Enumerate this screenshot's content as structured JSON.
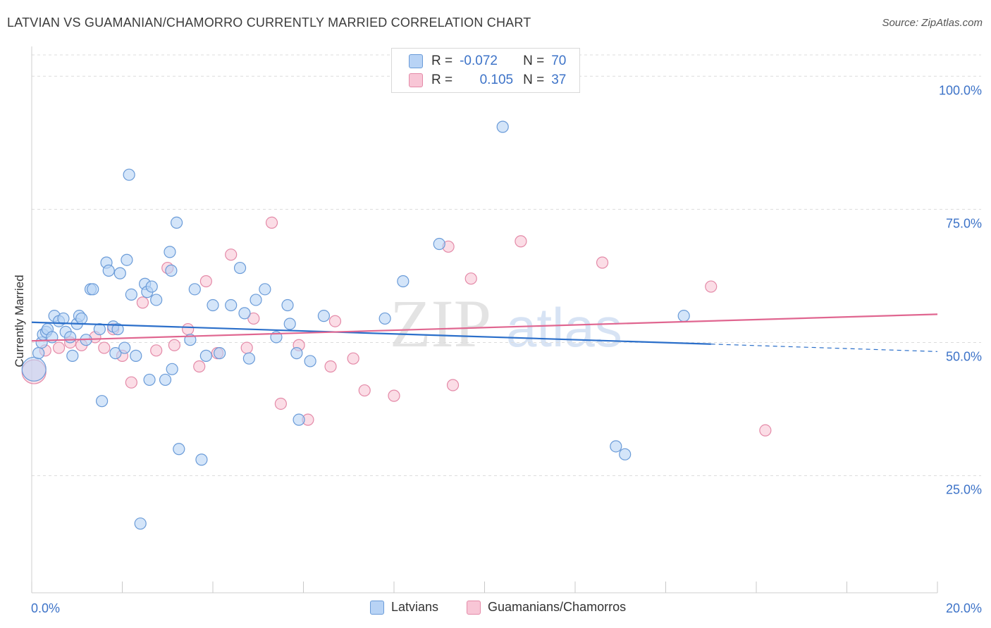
{
  "header": {
    "title": "LATVIAN VS GUAMANIAN/CHAMORRO CURRENTLY MARRIED CORRELATION CHART",
    "source": "Source: ZipAtlas.com"
  },
  "watermark": {
    "zip": "ZIP",
    "atlas": "atlas"
  },
  "stats": {
    "rows": [
      {
        "r_label": "R =",
        "r_value": "-0.072",
        "n_label": "N =",
        "n_value": "70"
      },
      {
        "r_label": "R =",
        "r_value": "0.105",
        "n_label": "N =",
        "n_value": "37"
      }
    ]
  },
  "legend": {
    "items": [
      "Latvians",
      "Guamanians/Chamorros"
    ]
  },
  "colors": {
    "blue_fill": "#b8d3f5",
    "blue_stroke": "#6a9bd8",
    "blue_line": "#2b6fca",
    "pink_fill": "#f8c6d6",
    "pink_stroke": "#e48aa8",
    "pink_line": "#e06690",
    "axis_label": "#3d73c8",
    "grid": "#dcdcdc"
  },
  "chart_data": {
    "type": "scatter",
    "title": "LATVIAN VS GUAMANIAN/CHAMORRO CURRENTLY MARRIED CORRELATION CHART",
    "xlabel": "",
    "ylabel": "Currently Married",
    "xlim": [
      0,
      20
    ],
    "ylim": [
      3,
      104
    ],
    "x_tick_labels": [
      "0.0%",
      "20.0%"
    ],
    "y_ticks": [
      25,
      50,
      75,
      100
    ],
    "y_tick_labels": [
      "25.0%",
      "50.0%",
      "75.0%",
      "100.0%"
    ],
    "grid": "horizontal dashed",
    "series": [
      {
        "name": "Latvians",
        "r": -0.072,
        "n": 70,
        "trend": {
          "x0": 0,
          "y0": 53.8,
          "x1": 15,
          "y1": 49.7,
          "dashed_to_x": 20,
          "dashed_to_y": 48.3
        },
        "points": [
          [
            0.05,
            45.0
          ],
          [
            0.15,
            48.0
          ],
          [
            0.22,
            50.0
          ],
          [
            0.25,
            51.5
          ],
          [
            0.32,
            52.0
          ],
          [
            0.35,
            52.5
          ],
          [
            0.45,
            51.0
          ],
          [
            0.5,
            55.0
          ],
          [
            0.6,
            54.0
          ],
          [
            0.7,
            54.5
          ],
          [
            0.75,
            52.0
          ],
          [
            0.85,
            51.0
          ],
          [
            0.9,
            47.5
          ],
          [
            1.0,
            53.5
          ],
          [
            1.05,
            55.0
          ],
          [
            1.1,
            54.5
          ],
          [
            1.2,
            50.5
          ],
          [
            1.3,
            60.0
          ],
          [
            1.35,
            60.0
          ],
          [
            1.5,
            52.5
          ],
          [
            1.55,
            39.0
          ],
          [
            1.65,
            65.0
          ],
          [
            1.7,
            63.5
          ],
          [
            1.8,
            53.0
          ],
          [
            1.85,
            48.0
          ],
          [
            1.9,
            52.5
          ],
          [
            1.95,
            63.0
          ],
          [
            2.05,
            49.0
          ],
          [
            2.1,
            65.5
          ],
          [
            2.15,
            81.5
          ],
          [
            2.2,
            59.0
          ],
          [
            2.3,
            47.5
          ],
          [
            2.4,
            16.0
          ],
          [
            2.5,
            61.0
          ],
          [
            2.55,
            59.5
          ],
          [
            2.6,
            43.0
          ],
          [
            2.65,
            60.5
          ],
          [
            2.75,
            58.0
          ],
          [
            2.95,
            43.0
          ],
          [
            3.05,
            67.0
          ],
          [
            3.08,
            63.5
          ],
          [
            3.1,
            45.0
          ],
          [
            3.2,
            72.5
          ],
          [
            3.25,
            30.0
          ],
          [
            3.5,
            50.5
          ],
          [
            3.6,
            60.0
          ],
          [
            3.75,
            28.0
          ],
          [
            3.85,
            47.5
          ],
          [
            4.0,
            57.0
          ],
          [
            4.15,
            48.0
          ],
          [
            4.4,
            57.0
          ],
          [
            4.6,
            64.0
          ],
          [
            4.7,
            55.5
          ],
          [
            4.8,
            47.0
          ],
          [
            4.95,
            58.0
          ],
          [
            5.15,
            60.0
          ],
          [
            5.4,
            51.0
          ],
          [
            5.65,
            57.0
          ],
          [
            5.7,
            53.5
          ],
          [
            5.85,
            48.0
          ],
          [
            5.9,
            35.5
          ],
          [
            6.15,
            46.5
          ],
          [
            6.45,
            55.0
          ],
          [
            7.8,
            54.5
          ],
          [
            8.2,
            61.5
          ],
          [
            9.0,
            68.5
          ],
          [
            10.4,
            90.5
          ],
          [
            12.9,
            30.5
          ],
          [
            13.1,
            29.0
          ],
          [
            14.4,
            55.0
          ]
        ]
      },
      {
        "name": "Guamanians/Chamorros",
        "r": 0.105,
        "n": 37,
        "trend": {
          "x0": 0,
          "y0": 50.3,
          "x1": 20,
          "y1": 55.3
        },
        "points": [
          [
            0.05,
            44.5
          ],
          [
            0.3,
            48.5
          ],
          [
            0.6,
            49.0
          ],
          [
            0.85,
            50.0
          ],
          [
            1.1,
            49.5
          ],
          [
            1.4,
            51.0
          ],
          [
            1.6,
            49.0
          ],
          [
            1.8,
            52.5
          ],
          [
            2.0,
            47.5
          ],
          [
            2.2,
            42.5
          ],
          [
            2.45,
            57.5
          ],
          [
            2.75,
            48.5
          ],
          [
            3.0,
            64.0
          ],
          [
            3.15,
            49.5
          ],
          [
            3.45,
            52.5
          ],
          [
            3.7,
            45.5
          ],
          [
            3.85,
            61.5
          ],
          [
            4.1,
            48.0
          ],
          [
            4.4,
            66.5
          ],
          [
            4.75,
            49.0
          ],
          [
            4.9,
            54.5
          ],
          [
            5.3,
            72.5
          ],
          [
            5.5,
            38.5
          ],
          [
            5.9,
            49.5
          ],
          [
            6.1,
            35.5
          ],
          [
            6.6,
            45.5
          ],
          [
            6.7,
            54.0
          ],
          [
            7.1,
            47.0
          ],
          [
            7.35,
            41.0
          ],
          [
            8.0,
            40.0
          ],
          [
            9.2,
            68.0
          ],
          [
            9.3,
            42.0
          ],
          [
            9.7,
            62.0
          ],
          [
            10.8,
            69.0
          ],
          [
            12.6,
            65.0
          ],
          [
            15.0,
            60.5
          ],
          [
            16.2,
            33.5
          ]
        ]
      }
    ]
  }
}
